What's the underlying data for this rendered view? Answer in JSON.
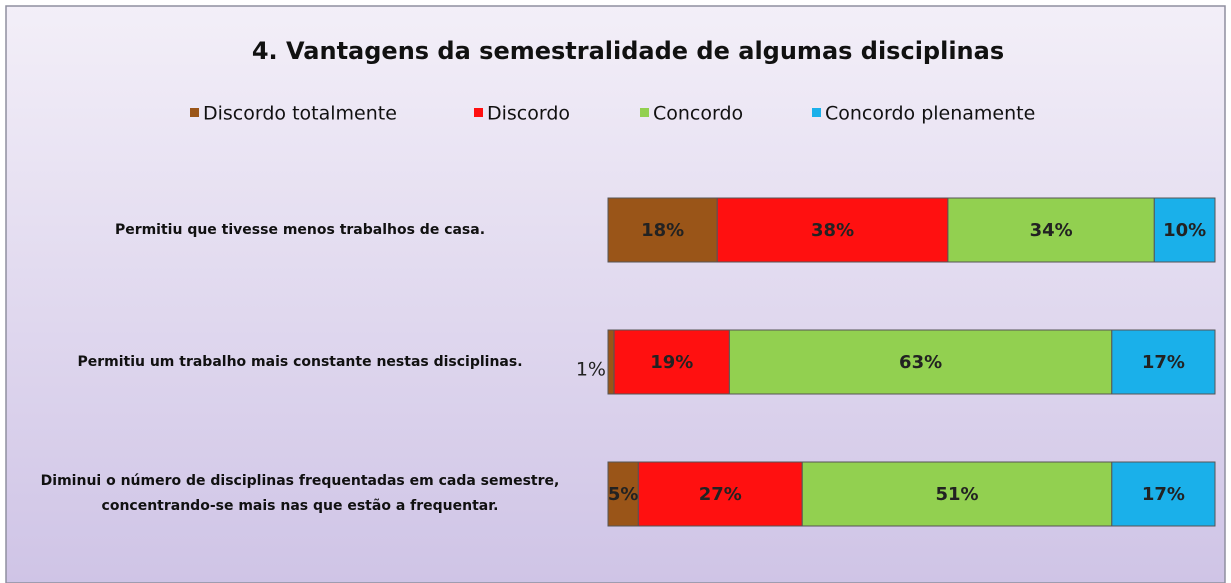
{
  "chart_data": {
    "type": "stacked-barh",
    "title": "4. Vantagens da semestralidade de algumas disciplinas",
    "categories": [
      "Permitiu que tivesse menos trabalhos de casa.",
      "Permitiu um trabalho mais constante nestas disciplinas.",
      "Diminui o número de disciplinas frequentadas em cada semestre, concentrando-se mais nas que estão a frequentar."
    ],
    "xlim": [
      0,
      100
    ],
    "legend": "top",
    "series": [
      {
        "name": "Discordo totalmente",
        "color": "#9a5518",
        "values": [
          18,
          1,
          5
        ],
        "value_labels": [
          "18%",
          "1%",
          "5%"
        ]
      },
      {
        "name": "Discordo",
        "color": "#ff1010",
        "values": [
          38,
          19,
          27
        ],
        "value_labels": [
          "38%",
          "19%",
          "27%"
        ]
      },
      {
        "name": "Concordo",
        "color": "#92d050",
        "values": [
          34,
          63,
          51
        ],
        "value_labels": [
          "34%",
          "63%",
          "51%"
        ]
      },
      {
        "name": "Concordo plenamente",
        "color": "#1ab0ea",
        "values": [
          10,
          17,
          17
        ],
        "value_labels": [
          "10%",
          "17%",
          "17%"
        ]
      }
    ]
  }
}
